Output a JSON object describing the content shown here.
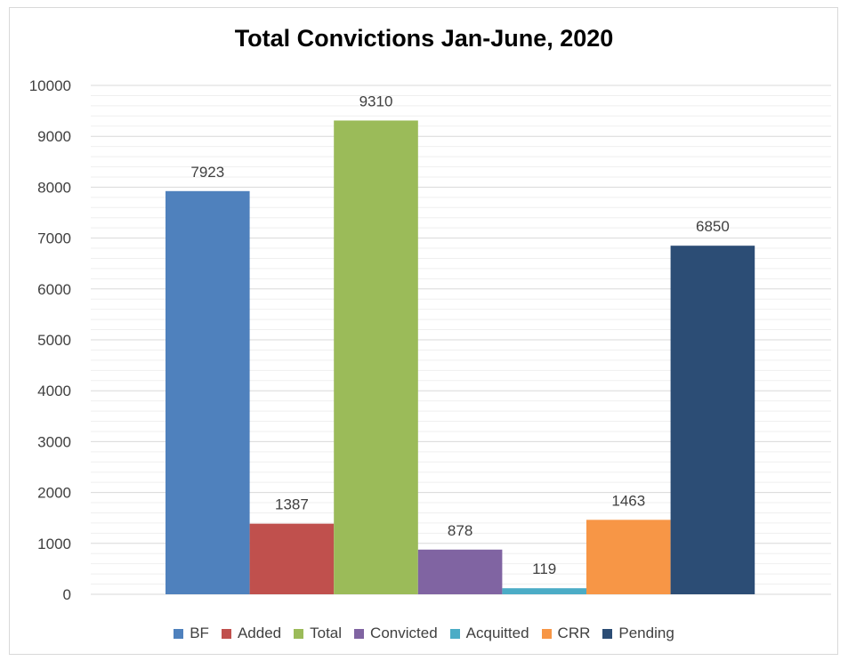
{
  "chart_data": {
    "type": "bar",
    "title": "Total Convictions Jan-June, 2020",
    "xlabel": "",
    "ylabel": "",
    "ylim": [
      0,
      10000
    ],
    "yticks": [
      0,
      1000,
      2000,
      3000,
      4000,
      5000,
      6000,
      7000,
      8000,
      9000,
      10000
    ],
    "grid": true,
    "legend_position": "bottom",
    "series": [
      {
        "name": "BF",
        "value": 7923,
        "color": "#4f81bd"
      },
      {
        "name": "Added",
        "value": 1387,
        "color": "#c0504d"
      },
      {
        "name": "Total",
        "value": 9310,
        "color": "#9bbb59"
      },
      {
        "name": "Convicted",
        "value": 878,
        "color": "#8064a2"
      },
      {
        "name": "Acquitted",
        "value": 119,
        "color": "#4bacc6"
      },
      {
        "name": "CRR",
        "value": 1463,
        "color": "#f79646"
      },
      {
        "name": "Pending",
        "value": 6850,
        "color": "#2c4d75"
      }
    ],
    "data_labels": [
      "7923",
      "1387",
      "9310",
      "878",
      "119",
      "1463",
      "6850"
    ]
  }
}
